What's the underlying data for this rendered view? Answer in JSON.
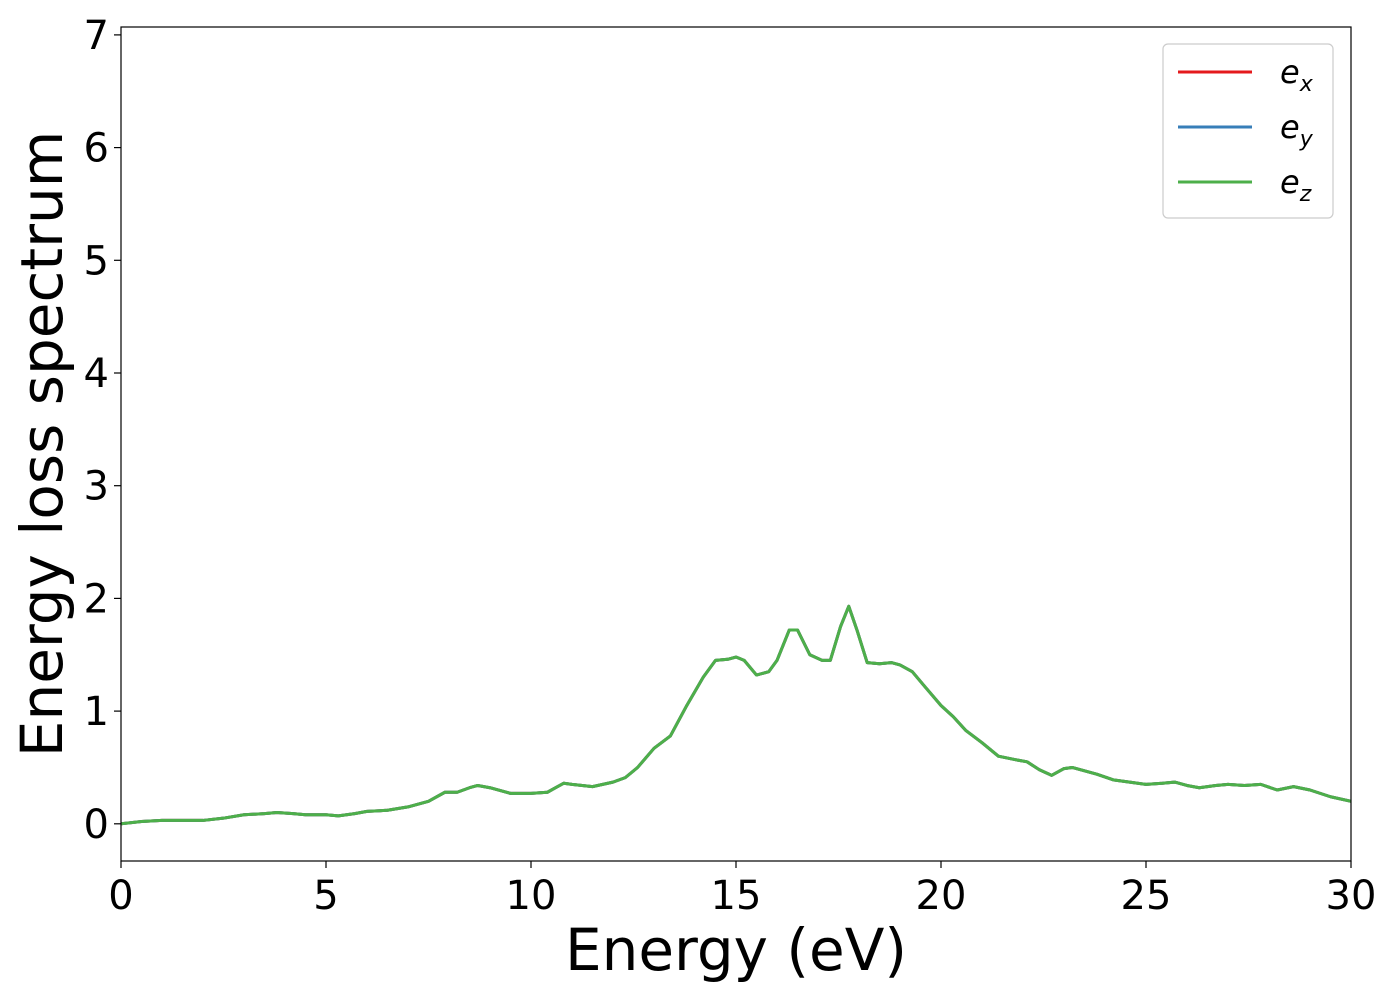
{
  "chart_data": {
    "type": "line",
    "title": "",
    "xlabel": "Energy (eV)",
    "ylabel": "Energy loss spectrum",
    "xlim": [
      0,
      30
    ],
    "ylim": [
      -0.33,
      7.07
    ],
    "xticks": [
      0,
      5,
      10,
      15,
      20,
      25,
      30
    ],
    "yticks": [
      0,
      1,
      2,
      3,
      4,
      5,
      6,
      7
    ],
    "xtick_labels": [
      "0",
      "5",
      "10",
      "15",
      "20",
      "25",
      "30"
    ],
    "ytick_labels": [
      "0",
      "1",
      "2",
      "3",
      "4",
      "5",
      "6",
      "7"
    ],
    "grid": false,
    "legend_position": "top-right",
    "series": [
      {
        "label_base": "e",
        "label_sub": "x",
        "color": "#e41a1c",
        "x": [
          0,
          0.5,
          1,
          1.5,
          2,
          2.5,
          3,
          3.5,
          3.8,
          4.2,
          4.5,
          5,
          5.3,
          5.7,
          6,
          6.5,
          7,
          7.5,
          7.9,
          8.2,
          8.5,
          8.7,
          9,
          9.5,
          10,
          10.4,
          10.6,
          10.8,
          11,
          11.5,
          12,
          12.3,
          12.6,
          13,
          13.4,
          13.8,
          14.2,
          14.5,
          14.8,
          15,
          15.2,
          15.5,
          15.8,
          16,
          16.3,
          16.5,
          16.8,
          17.1,
          17.3,
          17.55,
          17.75,
          17.95,
          18.2,
          18.5,
          18.8,
          19,
          19.3,
          19.6,
          20,
          20.3,
          20.6,
          21,
          21.4,
          21.8,
          22.1,
          22.4,
          22.7,
          23,
          23.2,
          23.5,
          23.8,
          24.2,
          24.6,
          25,
          25.4,
          25.7,
          26,
          26.3,
          26.7,
          27,
          27.4,
          27.8,
          28.2,
          28.6,
          29,
          29.5,
          30
        ],
        "y": [
          0,
          0.02,
          0.03,
          0.03,
          0.03,
          0.05,
          0.08,
          0.09,
          0.1,
          0.09,
          0.08,
          0.08,
          0.07,
          0.09,
          0.11,
          0.12,
          0.15,
          0.2,
          0.28,
          0.28,
          0.32,
          0.34,
          0.32,
          0.27,
          0.27,
          0.28,
          0.32,
          0.36,
          0.35,
          0.33,
          0.37,
          0.41,
          0.5,
          0.67,
          0.78,
          1.05,
          1.3,
          1.45,
          1.46,
          1.48,
          1.45,
          1.32,
          1.35,
          1.45,
          1.72,
          1.72,
          1.5,
          1.45,
          1.45,
          1.75,
          1.93,
          1.72,
          1.43,
          1.42,
          1.43,
          1.41,
          1.35,
          1.22,
          1.05,
          0.95,
          0.83,
          0.72,
          0.6,
          0.57,
          0.55,
          0.48,
          0.43,
          0.49,
          0.5,
          0.47,
          0.44,
          0.39,
          0.37,
          0.35,
          0.36,
          0.37,
          0.34,
          0.32,
          0.34,
          0.35,
          0.34,
          0.35,
          0.3,
          0.33,
          0.3,
          0.24,
          0.2
        ]
      },
      {
        "label_base": "e",
        "label_sub": "y",
        "color": "#377eb8",
        "x": [
          0,
          0.5,
          1,
          1.5,
          2,
          2.5,
          3,
          3.5,
          3.8,
          4.2,
          4.5,
          5,
          5.3,
          5.7,
          6,
          6.5,
          7,
          7.5,
          7.9,
          8.2,
          8.5,
          8.7,
          9,
          9.5,
          10,
          10.4,
          10.6,
          10.8,
          11,
          11.5,
          12,
          12.3,
          12.6,
          13,
          13.4,
          13.8,
          14.2,
          14.5,
          14.8,
          15,
          15.2,
          15.5,
          15.8,
          16,
          16.3,
          16.5,
          16.8,
          17.1,
          17.3,
          17.55,
          17.75,
          17.95,
          18.2,
          18.5,
          18.8,
          19,
          19.3,
          19.6,
          20,
          20.3,
          20.6,
          21,
          21.4,
          21.8,
          22.1,
          22.4,
          22.7,
          23,
          23.2,
          23.5,
          23.8,
          24.2,
          24.6,
          25,
          25.4,
          25.7,
          26,
          26.3,
          26.7,
          27,
          27.4,
          27.8,
          28.2,
          28.6,
          29,
          29.5,
          30
        ],
        "y": [
          0,
          0.02,
          0.03,
          0.03,
          0.03,
          0.05,
          0.08,
          0.09,
          0.1,
          0.09,
          0.08,
          0.08,
          0.07,
          0.09,
          0.11,
          0.12,
          0.15,
          0.2,
          0.28,
          0.28,
          0.32,
          0.34,
          0.32,
          0.27,
          0.27,
          0.28,
          0.32,
          0.36,
          0.35,
          0.33,
          0.37,
          0.41,
          0.5,
          0.67,
          0.78,
          1.05,
          1.3,
          1.45,
          1.46,
          1.48,
          1.45,
          1.32,
          1.35,
          1.45,
          1.72,
          1.72,
          1.5,
          1.45,
          1.45,
          1.75,
          1.93,
          1.72,
          1.43,
          1.42,
          1.43,
          1.41,
          1.35,
          1.22,
          1.05,
          0.95,
          0.83,
          0.72,
          0.6,
          0.57,
          0.55,
          0.48,
          0.43,
          0.49,
          0.5,
          0.47,
          0.44,
          0.39,
          0.37,
          0.35,
          0.36,
          0.37,
          0.34,
          0.32,
          0.34,
          0.35,
          0.34,
          0.35,
          0.3,
          0.33,
          0.3,
          0.24,
          0.2
        ]
      },
      {
        "label_base": "e",
        "label_sub": "z",
        "color": "#4daf4a",
        "x": [
          0,
          0.5,
          1,
          1.5,
          2,
          2.5,
          3,
          3.5,
          3.8,
          4.2,
          4.5,
          5,
          5.3,
          5.7,
          6,
          6.5,
          7,
          7.5,
          7.9,
          8.2,
          8.5,
          8.7,
          9,
          9.5,
          10,
          10.4,
          10.6,
          10.8,
          11,
          11.5,
          12,
          12.3,
          12.6,
          13,
          13.4,
          13.8,
          14.2,
          14.5,
          14.8,
          15,
          15.2,
          15.5,
          15.8,
          16,
          16.3,
          16.5,
          16.8,
          17.1,
          17.3,
          17.55,
          17.75,
          17.95,
          18.2,
          18.5,
          18.8,
          19,
          19.3,
          19.6,
          20,
          20.3,
          20.6,
          21,
          21.4,
          21.8,
          22.1,
          22.4,
          22.7,
          23,
          23.2,
          23.5,
          23.8,
          24.2,
          24.6,
          25,
          25.4,
          25.7,
          26,
          26.3,
          26.7,
          27,
          27.4,
          27.8,
          28.2,
          28.6,
          29,
          29.5,
          30
        ],
        "y": [
          0,
          0.02,
          0.03,
          0.03,
          0.03,
          0.05,
          0.08,
          0.09,
          0.1,
          0.09,
          0.08,
          0.08,
          0.07,
          0.09,
          0.11,
          0.12,
          0.15,
          0.2,
          0.28,
          0.28,
          0.32,
          0.34,
          0.32,
          0.27,
          0.27,
          0.28,
          0.32,
          0.36,
          0.35,
          0.33,
          0.37,
          0.41,
          0.5,
          0.67,
          0.78,
          1.05,
          1.3,
          1.45,
          1.46,
          1.48,
          1.45,
          1.32,
          1.35,
          1.45,
          1.72,
          1.72,
          1.5,
          1.45,
          1.45,
          1.75,
          1.93,
          1.72,
          1.43,
          1.42,
          1.43,
          1.41,
          1.35,
          1.22,
          1.05,
          0.95,
          0.83,
          0.72,
          0.6,
          0.57,
          0.55,
          0.48,
          0.43,
          0.49,
          0.5,
          0.47,
          0.44,
          0.39,
          0.37,
          0.35,
          0.36,
          0.37,
          0.34,
          0.32,
          0.34,
          0.35,
          0.34,
          0.35,
          0.3,
          0.33,
          0.3,
          0.24,
          0.2
        ]
      }
    ]
  }
}
